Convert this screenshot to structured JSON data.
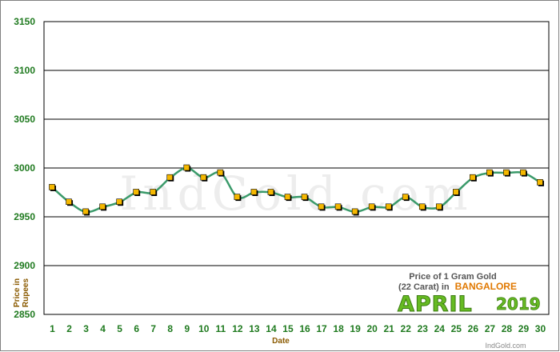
{
  "chart_data": {
    "type": "line",
    "title": "",
    "xlabel": "Date",
    "ylabel": "Price in Rupees",
    "ylim": [
      2850,
      3150
    ],
    "yticks": [
      2850,
      2900,
      2950,
      3000,
      3050,
      3100,
      3150
    ],
    "x": [
      "1",
      "2",
      "3",
      "4",
      "5",
      "6",
      "7",
      "8",
      "9",
      "10",
      "11",
      "12",
      "13",
      "14",
      "15",
      "16",
      "17",
      "18",
      "19",
      "20",
      "21",
      "22",
      "23",
      "24",
      "25",
      "26",
      "27",
      "28",
      "29",
      "30"
    ],
    "series": [
      {
        "name": "",
        "values": [
          2980,
          2965,
          2955,
          2960,
          2965,
          2975,
          2975,
          2990,
          3000,
          2990,
          2995,
          2970,
          2975,
          2975,
          2970,
          2970,
          2960,
          2960,
          2955,
          2960,
          2960,
          2970,
          2960,
          2960,
          2975,
          2990,
          2995,
          2995,
          2995,
          2985
        ]
      }
    ],
    "grid": true,
    "line_color": "#3a9a6a",
    "marker_color": "#f5b800",
    "grid_color": "#000000"
  },
  "watermark": "IndGold.com",
  "info_box": {
    "line1": "Price of 1 Gram Gold",
    "line2_prefix": "(22 Carat) in",
    "city": "BANGALORE",
    "month": "APRIL",
    "year": "2019",
    "site": "IndGold.com"
  },
  "y_title_line1": "Price in",
  "y_title_line2": "Rupees"
}
